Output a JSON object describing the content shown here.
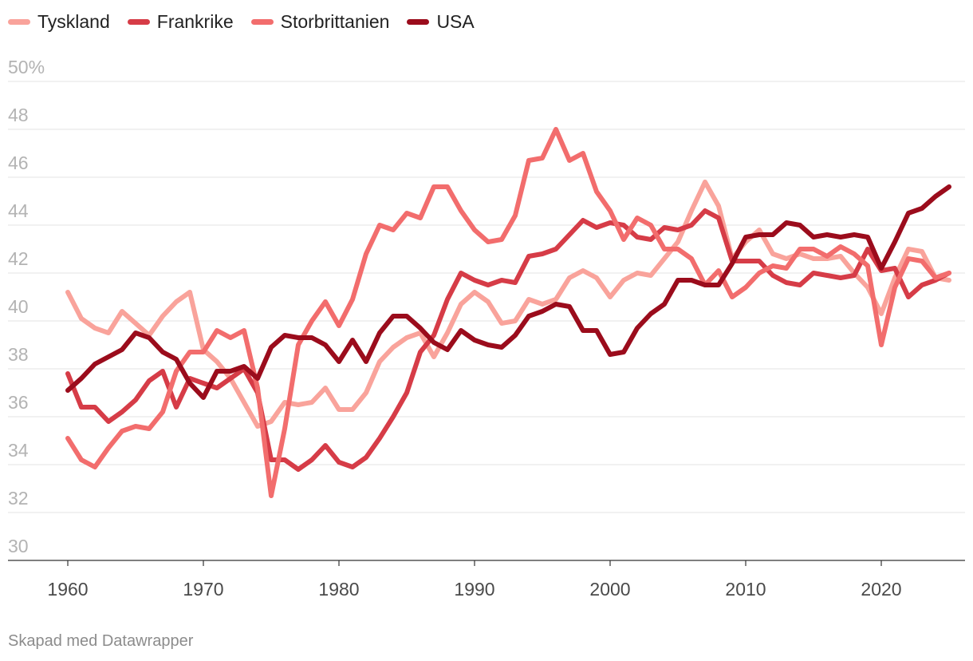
{
  "chart_data": {
    "type": "line",
    "title": "",
    "xlabel": "",
    "ylabel": "",
    "ylim": [
      30,
      50
    ],
    "y_ticks": [
      "50%",
      "48",
      "46",
      "44",
      "42",
      "40",
      "38",
      "36",
      "34",
      "32",
      "30"
    ],
    "x_ticks": [
      "1960",
      "1970",
      "1980",
      "1990",
      "2000",
      "2010",
      "2020"
    ],
    "x": [
      1960,
      1961,
      1962,
      1963,
      1964,
      1965,
      1966,
      1967,
      1968,
      1969,
      1970,
      1971,
      1972,
      1973,
      1974,
      1975,
      1976,
      1977,
      1978,
      1979,
      1980,
      1981,
      1982,
      1983,
      1984,
      1985,
      1986,
      1987,
      1988,
      1989,
      1990,
      1991,
      1992,
      1993,
      1994,
      1995,
      1996,
      1997,
      1998,
      1999,
      2000,
      2001,
      2002,
      2003,
      2004,
      2005,
      2006,
      2007,
      2008,
      2009,
      2010,
      2011,
      2012,
      2013,
      2014,
      2015,
      2016,
      2017,
      2018,
      2019,
      2020,
      2021,
      2022,
      2023,
      2024,
      2025
    ],
    "series": [
      {
        "name": "Tyskland",
        "color": "#f9a39b",
        "values": [
          41.2,
          40.1,
          39.7,
          39.5,
          40.4,
          39.9,
          39.4,
          40.2,
          40.8,
          41.2,
          38.8,
          38.3,
          37.6,
          36.6,
          35.6,
          35.8,
          36.6,
          36.5,
          36.6,
          37.2,
          36.3,
          36.3,
          37.0,
          38.3,
          38.9,
          39.3,
          39.5,
          38.5,
          39.5,
          40.7,
          41.2,
          40.8,
          39.9,
          40.0,
          40.9,
          40.7,
          40.9,
          41.8,
          42.1,
          41.8,
          41.0,
          41.7,
          42.0,
          41.9,
          42.6,
          43.3,
          44.6,
          45.8,
          44.8,
          42.6,
          43.3,
          43.8,
          42.8,
          42.6,
          42.8,
          42.6,
          42.6,
          42.7,
          42.0,
          41.4,
          40.3,
          41.8,
          43.0,
          42.9,
          41.8,
          41.7
        ]
      },
      {
        "name": "Frankrike",
        "color": "#d63c47",
        "values": [
          37.8,
          36.4,
          36.4,
          35.8,
          36.2,
          36.7,
          37.5,
          37.9,
          36.4,
          37.6,
          37.4,
          37.2,
          37.6,
          38.0,
          37.0,
          34.2,
          34.2,
          33.8,
          34.2,
          34.8,
          34.1,
          33.9,
          34.3,
          35.1,
          36.0,
          37.0,
          38.7,
          39.4,
          40.9,
          42.0,
          41.7,
          41.5,
          41.7,
          41.6,
          42.7,
          42.8,
          43.0,
          43.6,
          44.2,
          43.9,
          44.1,
          44.0,
          43.5,
          43.4,
          43.9,
          43.8,
          44.0,
          44.6,
          44.3,
          42.5,
          42.5,
          42.5,
          41.9,
          41.6,
          41.5,
          42.0,
          41.9,
          41.8,
          41.9,
          43.0,
          42.1,
          42.2,
          41.0,
          41.5,
          41.7,
          42.0
        ]
      },
      {
        "name": "Storbrittanien",
        "color": "#f26d6d",
        "values": [
          35.1,
          34.2,
          33.9,
          34.7,
          35.4,
          35.6,
          35.5,
          36.2,
          37.9,
          38.7,
          38.7,
          39.6,
          39.3,
          39.6,
          37.2,
          32.7,
          35.5,
          39.0,
          40.0,
          40.8,
          39.8,
          40.9,
          42.8,
          44.0,
          43.8,
          44.5,
          44.3,
          45.6,
          45.6,
          44.6,
          43.8,
          43.3,
          43.4,
          44.4,
          46.7,
          46.8,
          48.0,
          46.7,
          47.0,
          45.4,
          44.6,
          43.4,
          44.3,
          44.0,
          43.0,
          43.0,
          42.6,
          41.5,
          42.1,
          41.0,
          41.4,
          42.0,
          42.3,
          42.2,
          43.0,
          43.0,
          42.7,
          43.1,
          42.8,
          42.3,
          39.0,
          41.4,
          42.6,
          42.5,
          41.8,
          42.0
        ]
      },
      {
        "name": "USA",
        "color": "#9b0c1c",
        "values": [
          37.1,
          37.6,
          38.2,
          38.5,
          38.8,
          39.5,
          39.3,
          38.7,
          38.4,
          37.4,
          36.8,
          37.9,
          37.9,
          38.1,
          37.6,
          38.9,
          39.4,
          39.3,
          39.3,
          39.0,
          38.3,
          39.2,
          38.3,
          39.5,
          40.2,
          40.2,
          39.7,
          39.1,
          38.8,
          39.6,
          39.2,
          39.0,
          38.9,
          39.4,
          40.2,
          40.4,
          40.7,
          40.6,
          39.6,
          39.6,
          38.6,
          38.7,
          39.7,
          40.3,
          40.7,
          41.7,
          41.7,
          41.5,
          41.5,
          42.4,
          43.5,
          43.6,
          43.6,
          44.1,
          44.0,
          43.5,
          43.6,
          43.5,
          43.6,
          43.5,
          42.2,
          43.3,
          44.5,
          44.7,
          45.2,
          45.6
        ]
      }
    ]
  },
  "legend": [
    {
      "label": "Tyskland",
      "color": "#f9a39b"
    },
    {
      "label": "Frankrike",
      "color": "#d63c47"
    },
    {
      "label": "Storbrittanien",
      "color": "#f26d6d"
    },
    {
      "label": "USA",
      "color": "#9b0c1c"
    }
  ],
  "footer": "Skapad med Datawrapper"
}
